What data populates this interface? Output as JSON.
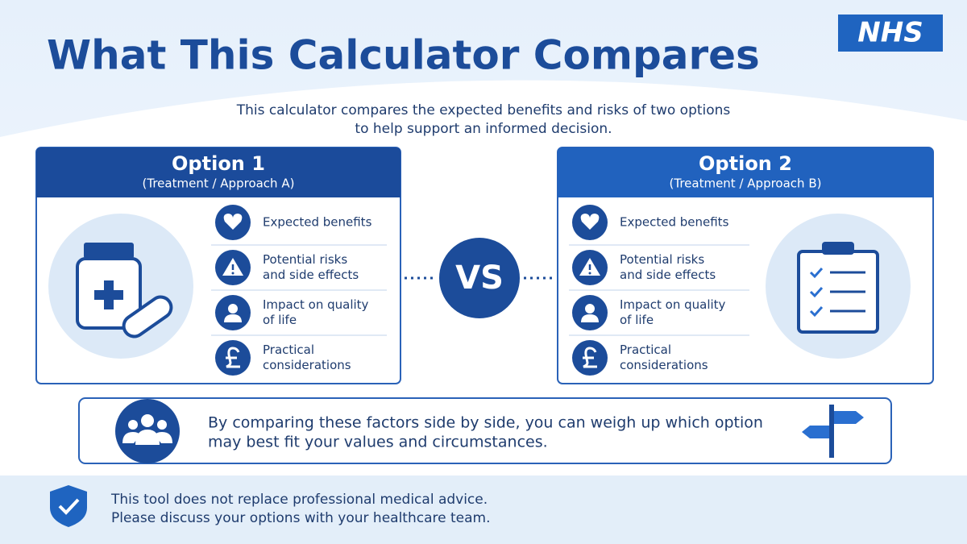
{
  "logo": "NHS",
  "header": {
    "title": "What This Calculator Compares",
    "subtitle": [
      "This calculator compares the expected benefits and risks of two options",
      "to help support an informed decision."
    ]
  },
  "options": [
    {
      "title": "Option 1",
      "subtitle": "(Treatment / Approach A)",
      "items": [
        [
          "Expected benefits"
        ],
        [
          "Potential risks",
          "and side effects"
        ],
        [
          "Impact on quality",
          "of life"
        ],
        [
          "Practical",
          "considerations"
        ]
      ]
    },
    {
      "title": "Option 2",
      "subtitle": "(Treatment / Approach B)",
      "items": [
        [
          "Expected benefits"
        ],
        [
          "Potential risks",
          "and side effects"
        ],
        [
          "Impact on quality",
          "of life"
        ],
        [
          "Practical",
          "considerations"
        ]
      ]
    }
  ],
  "vs": "VS",
  "summary": [
    "By comparing these factors side by side, you can weigh up which option",
    "may best fit your values and circumstances."
  ],
  "footer": [
    "This tool does not replace professional medical advice.",
    "Please discuss your options with your healthcare team."
  ]
}
